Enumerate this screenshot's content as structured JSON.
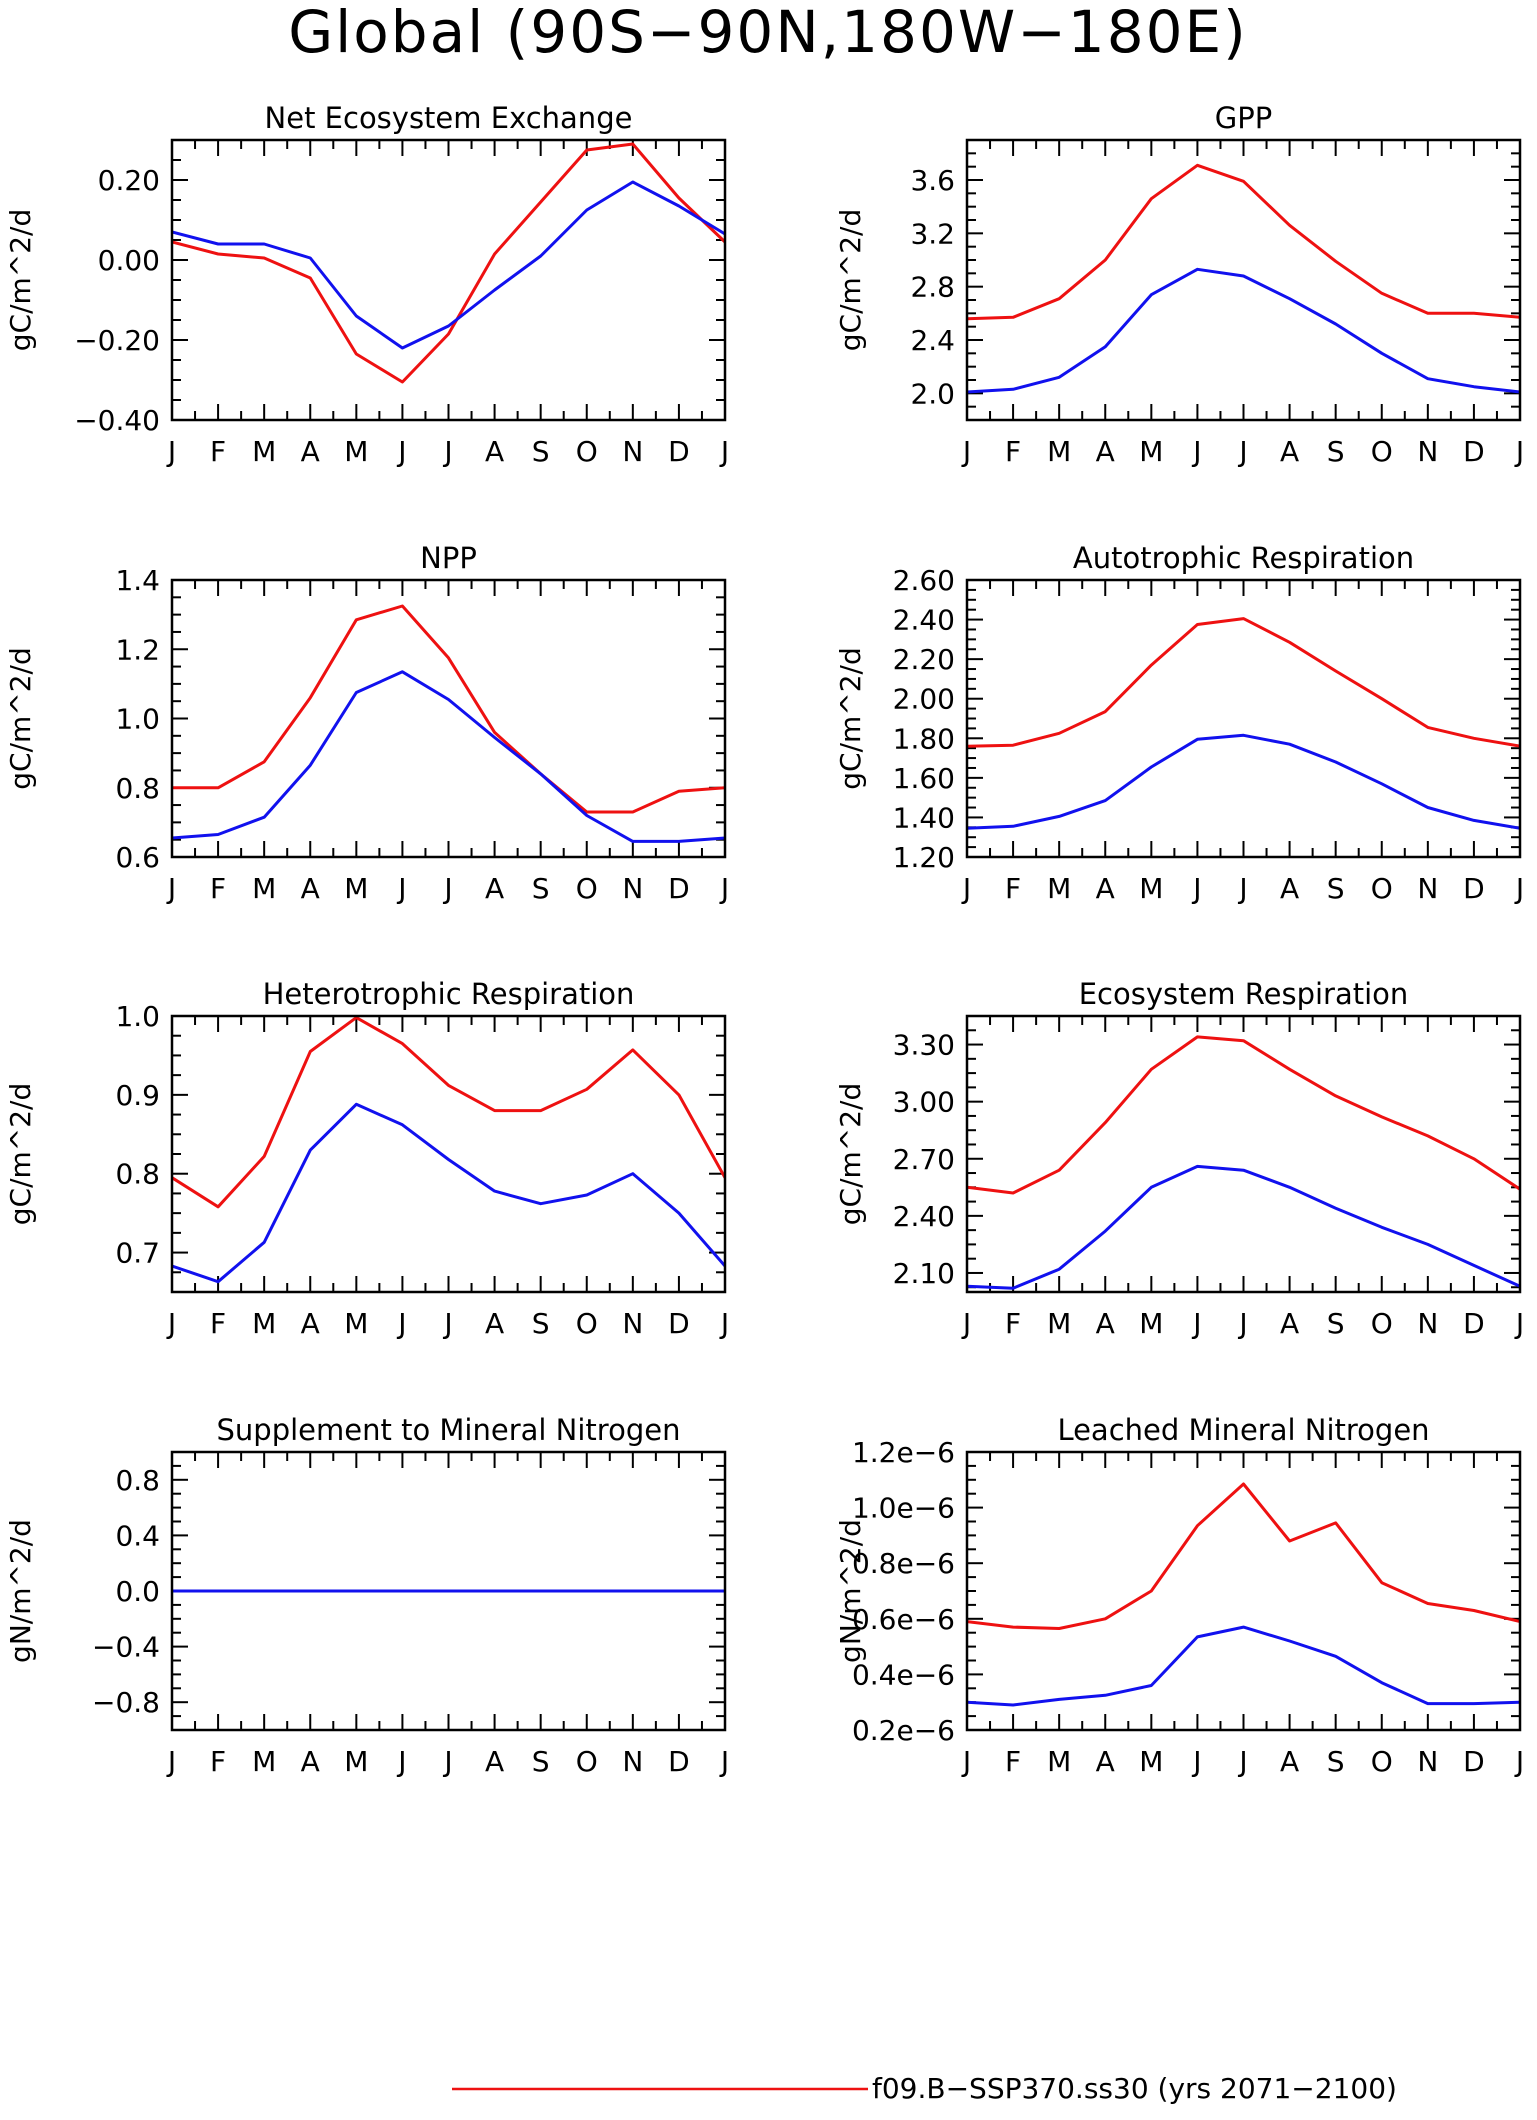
{
  "figure": {
    "title": "Global (90S−90N,180W−180E)",
    "colors": {
      "red": "#ee1111",
      "blue": "#1111ee"
    },
    "legend": [
      {
        "label": "f09.B−SSP370.ss30 (yrs 2071−2100)",
        "color": "#ee1111"
      }
    ]
  },
  "chart_data": [
    {
      "type": "line",
      "title": "Net Ecosystem Exchange",
      "ylabel": "gC/m^2/d",
      "categories": [
        "J",
        "F",
        "M",
        "A",
        "M",
        "J",
        "J",
        "A",
        "S",
        "O",
        "N",
        "D",
        "J"
      ],
      "ylim": [
        -0.4,
        0.3
      ],
      "yticks": [
        -0.4,
        -0.2,
        0.0,
        0.2
      ],
      "ytick_labels": [
        "−0.40",
        "−0.20",
        "0.00",
        "0.20"
      ],
      "series": [
        {
          "color": "#ee1111",
          "values": [
            0.045,
            0.015,
            0.005,
            -0.045,
            -0.235,
            -0.305,
            -0.185,
            0.015,
            0.145,
            0.275,
            0.29,
            0.155,
            0.045
          ]
        },
        {
          "color": "#1111ee",
          "values": [
            0.07,
            0.04,
            0.04,
            0.005,
            -0.14,
            -0.22,
            -0.165,
            -0.075,
            0.01,
            0.125,
            0.195,
            0.135,
            0.065
          ]
        }
      ]
    },
    {
      "type": "line",
      "title": "GPP",
      "ylabel": "gC/m^2/d",
      "categories": [
        "J",
        "F",
        "M",
        "A",
        "M",
        "J",
        "J",
        "A",
        "S",
        "O",
        "N",
        "D",
        "J"
      ],
      "ylim": [
        1.8,
        3.9
      ],
      "yticks": [
        2.0,
        2.4,
        2.8,
        3.2,
        3.6
      ],
      "ytick_labels": [
        "2.0",
        "2.4",
        "2.8",
        "3.2",
        "3.6"
      ],
      "series": [
        {
          "color": "#ee1111",
          "values": [
            2.56,
            2.57,
            2.71,
            3.0,
            3.46,
            3.71,
            3.59,
            3.26,
            2.99,
            2.75,
            2.6,
            2.6,
            2.57
          ]
        },
        {
          "color": "#1111ee",
          "values": [
            2.01,
            2.03,
            2.12,
            2.35,
            2.74,
            2.93,
            2.88,
            2.71,
            2.52,
            2.3,
            2.11,
            2.05,
            2.01
          ]
        }
      ]
    },
    {
      "type": "line",
      "title": "NPP",
      "ylabel": "gC/m^2/d",
      "categories": [
        "J",
        "F",
        "M",
        "A",
        "M",
        "J",
        "J",
        "A",
        "S",
        "O",
        "N",
        "D",
        "J"
      ],
      "ylim": [
        0.6,
        1.4
      ],
      "yticks": [
        0.6,
        0.8,
        1.0,
        1.2,
        1.4
      ],
      "ytick_labels": [
        "0.6",
        "0.8",
        "1.0",
        "1.2",
        "1.4"
      ],
      "series": [
        {
          "color": "#ee1111",
          "values": [
            0.8,
            0.8,
            0.875,
            1.06,
            1.285,
            1.325,
            1.175,
            0.96,
            0.84,
            0.73,
            0.73,
            0.79,
            0.8
          ]
        },
        {
          "color": "#1111ee",
          "values": [
            0.655,
            0.665,
            0.715,
            0.865,
            1.075,
            1.135,
            1.055,
            0.945,
            0.84,
            0.72,
            0.645,
            0.645,
            0.655
          ]
        }
      ]
    },
    {
      "type": "line",
      "title": "Autotrophic Respiration",
      "ylabel": "gC/m^2/d",
      "categories": [
        "J",
        "F",
        "M",
        "A",
        "M",
        "J",
        "J",
        "A",
        "S",
        "O",
        "N",
        "D",
        "J"
      ],
      "ylim": [
        1.2,
        2.6
      ],
      "yticks": [
        1.2,
        1.4,
        1.6,
        1.8,
        2.0,
        2.2,
        2.4,
        2.6
      ],
      "ytick_labels": [
        "1.20",
        "1.40",
        "1.60",
        "1.80",
        "2.00",
        "2.20",
        "2.40",
        "2.60"
      ],
      "series": [
        {
          "color": "#ee1111",
          "values": [
            1.76,
            1.765,
            1.825,
            1.935,
            2.17,
            2.375,
            2.405,
            2.285,
            2.14,
            2.0,
            1.855,
            1.8,
            1.76
          ]
        },
        {
          "color": "#1111ee",
          "values": [
            1.345,
            1.355,
            1.405,
            1.485,
            1.655,
            1.795,
            1.815,
            1.77,
            1.68,
            1.57,
            1.45,
            1.385,
            1.345
          ]
        }
      ]
    },
    {
      "type": "line",
      "title": "Heterotrophic Respiration",
      "ylabel": "gC/m^2/d",
      "categories": [
        "J",
        "F",
        "M",
        "A",
        "M",
        "J",
        "J",
        "A",
        "S",
        "O",
        "N",
        "D",
        "J"
      ],
      "ylim": [
        0.65,
        1.0
      ],
      "yticks": [
        0.7,
        0.8,
        0.9,
        1.0
      ],
      "ytick_labels": [
        "0.7",
        "0.8",
        "0.9",
        "1.0"
      ],
      "series": [
        {
          "color": "#ee1111",
          "values": [
            0.795,
            0.758,
            0.822,
            0.955,
            0.998,
            0.965,
            0.912,
            0.88,
            0.88,
            0.907,
            0.957,
            0.9,
            0.795
          ]
        },
        {
          "color": "#1111ee",
          "values": [
            0.683,
            0.663,
            0.713,
            0.83,
            0.888,
            0.862,
            0.818,
            0.778,
            0.762,
            0.773,
            0.8,
            0.75,
            0.683
          ]
        }
      ]
    },
    {
      "type": "line",
      "title": "Ecosystem Respiration",
      "ylabel": "gC/m^2/d",
      "categories": [
        "J",
        "F",
        "M",
        "A",
        "M",
        "J",
        "J",
        "A",
        "S",
        "O",
        "N",
        "D",
        "J"
      ],
      "ylim": [
        2.0,
        3.45
      ],
      "yticks": [
        2.1,
        2.4,
        2.7,
        3.0,
        3.3
      ],
      "ytick_labels": [
        "2.10",
        "2.40",
        "2.70",
        "3.00",
        "3.30"
      ],
      "series": [
        {
          "color": "#ee1111",
          "values": [
            2.55,
            2.52,
            2.64,
            2.89,
            3.17,
            3.34,
            3.32,
            3.17,
            3.03,
            2.92,
            2.82,
            2.7,
            2.54
          ]
        },
        {
          "color": "#1111ee",
          "values": [
            2.03,
            2.02,
            2.12,
            2.32,
            2.55,
            2.66,
            2.64,
            2.55,
            2.44,
            2.34,
            2.25,
            2.14,
            2.03
          ]
        }
      ]
    },
    {
      "type": "line",
      "title": "Supplement to Mineral Nitrogen",
      "ylabel": "gN/m^2/d",
      "categories": [
        "J",
        "F",
        "M",
        "A",
        "M",
        "J",
        "J",
        "A",
        "S",
        "O",
        "N",
        "D",
        "J"
      ],
      "ylim": [
        -1.0,
        1.0
      ],
      "yticks": [
        -0.8,
        -0.4,
        0.0,
        0.4,
        0.8
      ],
      "ytick_labels": [
        "−0.8",
        "−0.4",
        "0.0",
        "0.4",
        "0.8"
      ],
      "series": [
        {
          "color": "#ee1111",
          "values": [
            0,
            0,
            0,
            0,
            0,
            0,
            0,
            0,
            0,
            0,
            0,
            0,
            0
          ]
        },
        {
          "color": "#1111ee",
          "values": [
            0,
            0,
            0,
            0,
            0,
            0,
            0,
            0,
            0,
            0,
            0,
            0,
            0
          ]
        }
      ]
    },
    {
      "type": "line",
      "title": "Leached Mineral Nitrogen",
      "ylabel": "gN/m^2/d",
      "categories": [
        "J",
        "F",
        "M",
        "A",
        "M",
        "J",
        "J",
        "A",
        "S",
        "O",
        "N",
        "D",
        "J"
      ],
      "ylim": [
        2e-07,
        1.2e-06
      ],
      "yticks": [
        2e-07,
        4e-07,
        6e-07,
        8e-07,
        1e-06,
        1.2e-06
      ],
      "ytick_labels": [
        "0.2e−6",
        "0.4e−6",
        "0.6e−6",
        "0.8e−6",
        "1.0e−6",
        "1.2e−6"
      ],
      "series": [
        {
          "color": "#ee1111",
          "values": [
            5.9e-07,
            5.7e-07,
            5.65e-07,
            6e-07,
            7e-07,
            9.35e-07,
            1.085e-06,
            8.8e-07,
            9.45e-07,
            7.3e-07,
            6.55e-07,
            6.3e-07,
            5.9e-07
          ]
        },
        {
          "color": "#1111ee",
          "values": [
            3e-07,
            2.9e-07,
            3.1e-07,
            3.25e-07,
            3.6e-07,
            5.35e-07,
            5.7e-07,
            5.2e-07,
            4.65e-07,
            3.7e-07,
            2.95e-07,
            2.95e-07,
            3e-07
          ]
        }
      ]
    }
  ]
}
